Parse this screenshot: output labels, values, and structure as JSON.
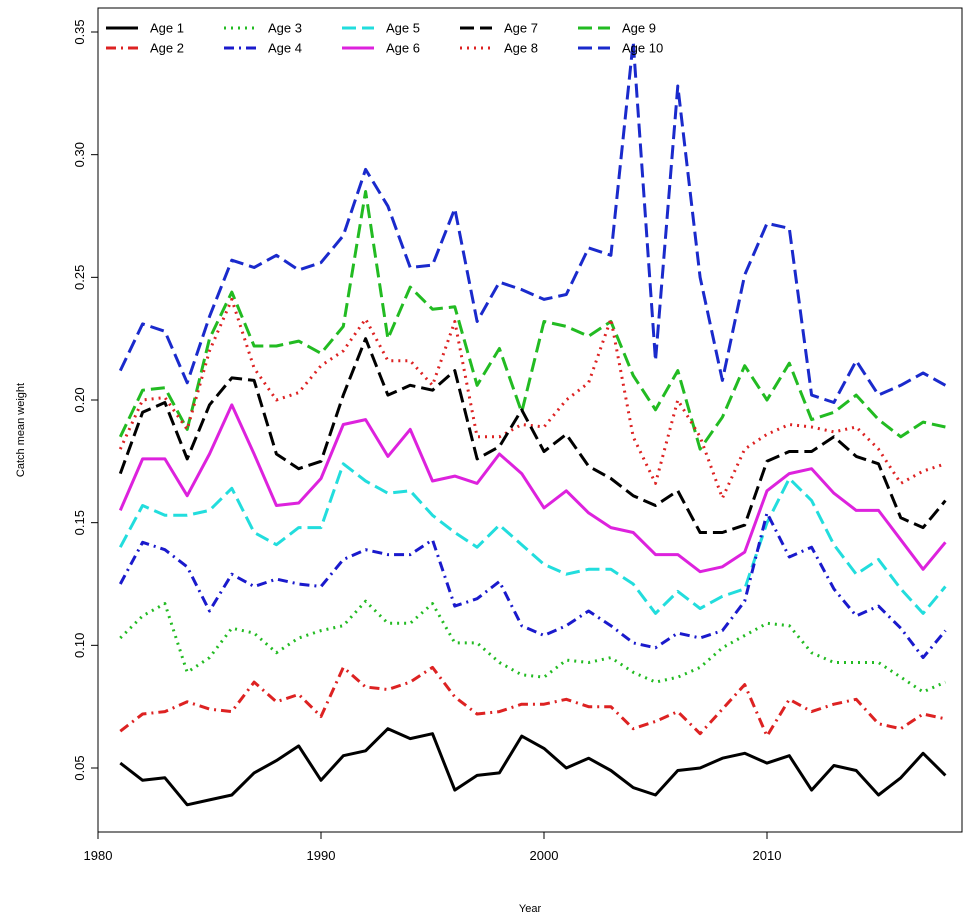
{
  "chart_data": {
    "type": "line",
    "title": "",
    "xlabel": "Year",
    "ylabel": "Catch mean weight",
    "xlim": [
      1981,
      2018
    ],
    "ylim": [
      0.035,
      0.345
    ],
    "x_ticks": [
      1980,
      1990,
      2000,
      2010
    ],
    "y_ticks": [
      0.05,
      0.1,
      0.15,
      0.2,
      0.25,
      0.3,
      0.35
    ],
    "y_tick_labels": [
      "0.05",
      "0.10",
      "0.15",
      "0.20",
      "0.25",
      "0.30",
      "0.35"
    ],
    "grid": false,
    "legend_position": "top-left",
    "x": [
      1981,
      1982,
      1983,
      1984,
      1985,
      1986,
      1987,
      1988,
      1989,
      1990,
      1991,
      1992,
      1993,
      1994,
      1995,
      1996,
      1997,
      1998,
      1999,
      2000,
      2001,
      2002,
      2003,
      2004,
      2005,
      2006,
      2007,
      2008,
      2009,
      2010,
      2011,
      2012,
      2013,
      2014,
      2015,
      2016,
      2017,
      2018
    ],
    "series": [
      {
        "name": "Age 1",
        "color": "#000000",
        "dash": "solid",
        "values": [
          0.052,
          0.045,
          0.046,
          0.035,
          0.037,
          0.039,
          0.048,
          0.053,
          0.059,
          0.045,
          0.055,
          0.057,
          0.066,
          0.062,
          0.064,
          0.041,
          0.047,
          0.048,
          0.063,
          0.058,
          0.05,
          0.054,
          0.049,
          0.042,
          0.039,
          0.049,
          0.05,
          0.054,
          0.056,
          0.052,
          0.055,
          0.041,
          0.051,
          0.049,
          0.039,
          0.046,
          0.056,
          0.047
        ]
      },
      {
        "name": "Age 2",
        "color": "#dd2222",
        "dash": "dashdot",
        "values": [
          0.065,
          0.072,
          0.073,
          0.077,
          0.074,
          0.073,
          0.085,
          0.077,
          0.08,
          0.071,
          0.091,
          0.083,
          0.082,
          0.085,
          0.091,
          0.079,
          0.072,
          0.073,
          0.076,
          0.076,
          0.078,
          0.075,
          0.075,
          0.066,
          0.069,
          0.073,
          0.064,
          0.074,
          0.084,
          0.063,
          0.078,
          0.073,
          0.076,
          0.078,
          0.068,
          0.066,
          0.072,
          0.07
        ]
      },
      {
        "name": "Age 3",
        "color": "#22bb22",
        "dash": "dotted",
        "values": [
          0.103,
          0.112,
          0.117,
          0.089,
          0.095,
          0.107,
          0.105,
          0.097,
          0.103,
          0.106,
          0.108,
          0.118,
          0.109,
          0.109,
          0.117,
          0.101,
          0.101,
          0.093,
          0.088,
          0.087,
          0.094,
          0.093,
          0.095,
          0.089,
          0.085,
          0.087,
          0.091,
          0.099,
          0.104,
          0.109,
          0.108,
          0.097,
          0.093,
          0.093,
          0.093,
          0.087,
          0.081,
          0.085
        ]
      },
      {
        "name": "Age 4",
        "color": "#1a1acc",
        "dash": "dashdot",
        "values": [
          0.125,
          0.142,
          0.139,
          0.132,
          0.114,
          0.129,
          0.124,
          0.127,
          0.125,
          0.124,
          0.135,
          0.139,
          0.137,
          0.137,
          0.143,
          0.116,
          0.119,
          0.126,
          0.108,
          0.104,
          0.108,
          0.114,
          0.108,
          0.101,
          0.099,
          0.105,
          0.103,
          0.106,
          0.118,
          0.154,
          0.136,
          0.14,
          0.123,
          0.112,
          0.116,
          0.107,
          0.095,
          0.106
        ]
      },
      {
        "name": "Age 5",
        "color": "#22dddd",
        "dash": "longdash",
        "values": [
          0.14,
          0.157,
          0.153,
          0.153,
          0.155,
          0.164,
          0.146,
          0.141,
          0.148,
          0.148,
          0.174,
          0.167,
          0.162,
          0.163,
          0.153,
          0.146,
          0.14,
          0.149,
          0.141,
          0.133,
          0.129,
          0.131,
          0.131,
          0.125,
          0.113,
          0.122,
          0.115,
          0.12,
          0.123,
          0.15,
          0.168,
          0.159,
          0.141,
          0.129,
          0.135,
          0.123,
          0.113,
          0.124
        ]
      },
      {
        "name": "Age 6",
        "color": "#dd22dd",
        "dash": "solid",
        "values": [
          0.155,
          0.176,
          0.176,
          0.161,
          0.178,
          0.198,
          0.178,
          0.157,
          0.158,
          0.168,
          0.19,
          0.192,
          0.177,
          0.188,
          0.167,
          0.169,
          0.166,
          0.178,
          0.17,
          0.156,
          0.163,
          0.154,
          0.148,
          0.146,
          0.137,
          0.137,
          0.13,
          0.132,
          0.138,
          0.163,
          0.17,
          0.172,
          0.162,
          0.155,
          0.155,
          0.143,
          0.131,
          0.142
        ]
      },
      {
        "name": "Age 7",
        "color": "#000000",
        "dash": "longdash",
        "values": [
          0.17,
          0.195,
          0.199,
          0.176,
          0.198,
          0.209,
          0.208,
          0.178,
          0.172,
          0.175,
          0.202,
          0.225,
          0.202,
          0.206,
          0.204,
          0.212,
          0.176,
          0.181,
          0.196,
          0.179,
          0.186,
          0.173,
          0.168,
          0.161,
          0.157,
          0.163,
          0.146,
          0.146,
          0.149,
          0.175,
          0.179,
          0.179,
          0.185,
          0.177,
          0.174,
          0.152,
          0.148,
          0.159
        ]
      },
      {
        "name": "Age 8",
        "color": "#dd2222",
        "dash": "dotted",
        "values": [
          0.18,
          0.2,
          0.201,
          0.188,
          0.22,
          0.241,
          0.213,
          0.2,
          0.203,
          0.214,
          0.22,
          0.233,
          0.216,
          0.216,
          0.206,
          0.232,
          0.185,
          0.185,
          0.19,
          0.189,
          0.2,
          0.207,
          0.233,
          0.185,
          0.166,
          0.2,
          0.185,
          0.16,
          0.18,
          0.186,
          0.19,
          0.189,
          0.187,
          0.189,
          0.18,
          0.166,
          0.171,
          0.174
        ]
      },
      {
        "name": "Age 9",
        "color": "#22bb22",
        "dash": "longdash",
        "values": [
          0.185,
          0.204,
          0.205,
          0.188,
          0.225,
          0.244,
          0.222,
          0.222,
          0.224,
          0.219,
          0.23,
          0.285,
          0.225,
          0.246,
          0.237,
          0.238,
          0.206,
          0.221,
          0.195,
          0.232,
          0.23,
          0.226,
          0.232,
          0.21,
          0.196,
          0.212,
          0.18,
          0.193,
          0.214,
          0.2,
          0.215,
          0.192,
          0.195,
          0.202,
          0.192,
          0.185,
          0.191,
          0.189
        ]
      },
      {
        "name": "Age 10",
        "color": "#1a2acc",
        "dash": "longdash",
        "values": [
          0.212,
          0.231,
          0.228,
          0.207,
          0.234,
          0.257,
          0.254,
          0.259,
          0.253,
          0.256,
          0.267,
          0.294,
          0.279,
          0.254,
          0.255,
          0.278,
          0.232,
          0.248,
          0.245,
          0.241,
          0.243,
          0.262,
          0.259,
          0.346,
          0.216,
          0.328,
          0.25,
          0.208,
          0.251,
          0.272,
          0.27,
          0.202,
          0.199,
          0.216,
          0.202,
          0.206,
          0.211,
          0.206
        ]
      }
    ]
  }
}
